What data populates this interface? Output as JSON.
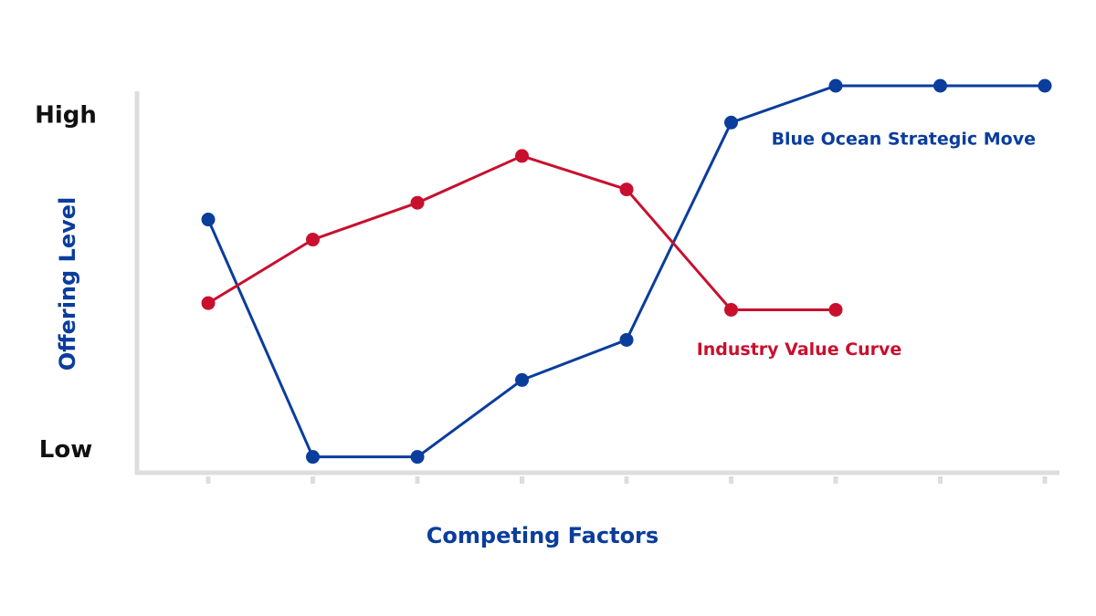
{
  "chart_data": {
    "type": "line",
    "x_label": "Competing Factors",
    "y_label": "Offering Level",
    "categories": [
      null,
      null,
      null,
      null,
      null,
      null,
      null,
      null,
      null
    ],
    "ylim": [
      -0.7,
      11.2
    ],
    "yticks": [
      {
        "value": 0,
        "label": "Low"
      },
      {
        "value": 10,
        "label": "High"
      }
    ],
    "series": [
      {
        "name": "Blue Ocean Strategic Move",
        "color": "#0a3d9c",
        "values": [
          6.9,
          -0.2,
          -0.2,
          2.1,
          3.3,
          9.8,
          10.9,
          10.9,
          10.9
        ]
      },
      {
        "name": "Industry Value Curve",
        "color": "#c8102e",
        "values": [
          4.4,
          6.3,
          7.4,
          8.8,
          7.8,
          4.2,
          4.2,
          null,
          null
        ]
      }
    ]
  }
}
